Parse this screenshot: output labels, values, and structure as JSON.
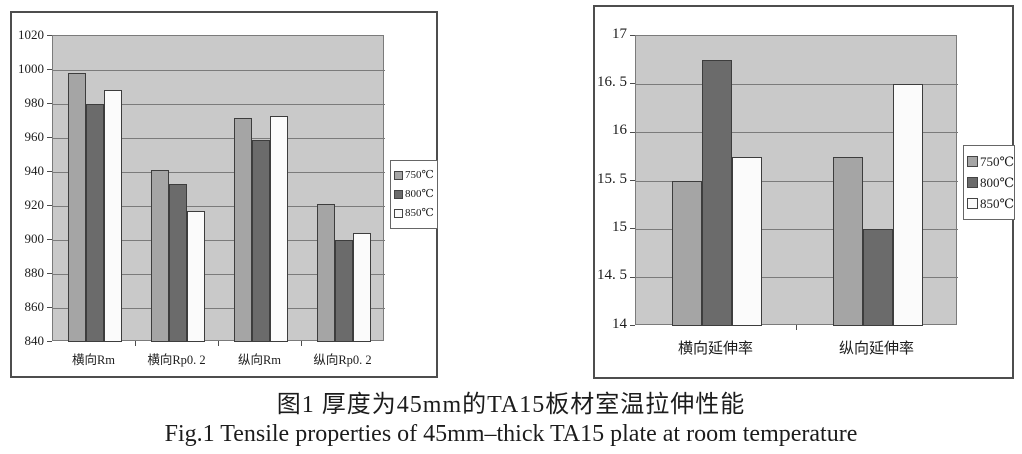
{
  "figure": {
    "caption_zh": "图1 厚度为45mm的TA15板材室温拉伸性能",
    "caption_en": "Fig.1  Tensile properties of 45mm–thick TA15 plate at room temperature"
  },
  "colors": {
    "plot_background": "#c9c9c9",
    "gridline": "#7b7b7b",
    "axis_tick": "#4d4d4d",
    "bar_border": "#3d3d3d",
    "frame_border": "#4d4d4d",
    "series_750": "#a5a5a5",
    "series_800": "#6b6b6b",
    "series_850": "#fbfbfb"
  },
  "chart_data": [
    {
      "type": "bar",
      "title": "",
      "xlabel": "",
      "ylabel": "",
      "categories": [
        "横向Rm",
        "横向Rp0. 2",
        "纵向Rm",
        "纵向Rp0. 2"
      ],
      "series": [
        {
          "name": "750℃",
          "color": "#a5a5a5",
          "values": [
            998,
            941,
            972,
            921
          ]
        },
        {
          "name": "800℃",
          "color": "#6b6b6b",
          "values": [
            980,
            933,
            959,
            900
          ]
        },
        {
          "name": "850℃",
          "color": "#fbfbfb",
          "values": [
            988,
            917,
            973,
            904
          ]
        }
      ],
      "ylim": [
        840,
        1020
      ],
      "ytick_step": 20,
      "ytick_labels": [
        "1020",
        "1000",
        "980",
        "960",
        "940",
        "920",
        "900",
        "880",
        "860",
        "840"
      ],
      "grid": true,
      "legend_position": "right"
    },
    {
      "type": "bar",
      "title": "",
      "xlabel": "",
      "ylabel": "",
      "categories": [
        "横向延伸率",
        "纵向延伸率"
      ],
      "series": [
        {
          "name": "750℃",
          "color": "#a5a5a5",
          "values": [
            15.5,
            15.75
          ]
        },
        {
          "name": "800℃",
          "color": "#6b6b6b",
          "values": [
            16.75,
            15
          ]
        },
        {
          "name": "850℃",
          "color": "#fbfbfb",
          "values": [
            15.75,
            16.5
          ]
        }
      ],
      "ylim": [
        14,
        17
      ],
      "ytick_step": 0.5,
      "ytick_labels": [
        "17",
        "16. 5",
        "16",
        "15. 5",
        "15",
        "14. 5",
        "14"
      ],
      "grid": true,
      "legend_position": "right"
    }
  ]
}
